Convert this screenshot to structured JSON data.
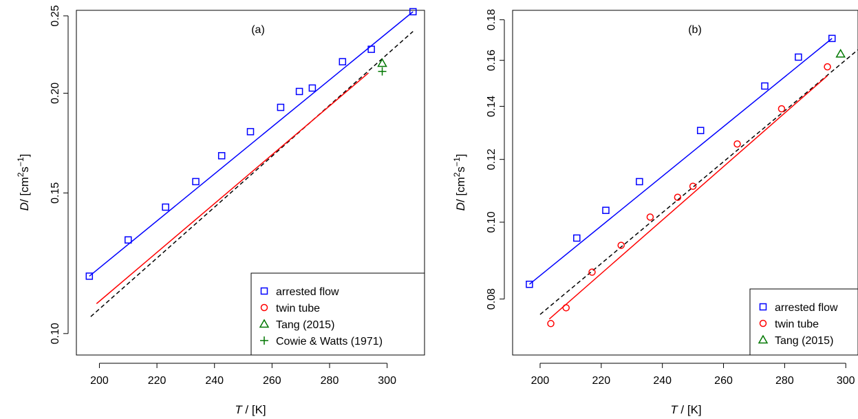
{
  "chart_data": [
    {
      "type": "scatter",
      "title": "(a)",
      "xlabel": "T / [K]",
      "ylabel": "D/ [cm^2 s^-1]",
      "y_scale": "log",
      "xlim": [
        192,
        313
      ],
      "ylim": [
        0.094,
        0.254
      ],
      "x_ticks": [
        200,
        220,
        240,
        260,
        280,
        300
      ],
      "y_ticks": [
        0.1,
        0.15,
        0.2,
        0.25
      ],
      "y_tick_labels": [
        "0.10",
        "0.15",
        "0.20",
        "0.25"
      ],
      "legend_position": "bottom-right",
      "series": [
        {
          "name": "arrested flow",
          "color": "#0000ff",
          "marker": "square",
          "points": [
            [
              196.5,
              0.118
            ],
            [
              210,
              0.131
            ],
            [
              223,
              0.144
            ],
            [
              233.5,
              0.155
            ],
            [
              242.5,
              0.167
            ],
            [
              252.5,
              0.179
            ],
            [
              263,
              0.192
            ],
            [
              269.5,
              0.201
            ],
            [
              274,
              0.203
            ],
            [
              284.5,
              0.219
            ],
            [
              294.5,
              0.227
            ],
            [
              309,
              0.253
            ]
          ],
          "fit_line": [
            [
              196.5,
              0.118
            ],
            [
              309,
              0.253
            ]
          ]
        },
        {
          "name": "twin tube",
          "color": "#ff0000",
          "marker": "circle",
          "points": [],
          "fit_line": [
            [
              199,
              0.109
            ],
            [
              293.5,
              0.212
            ]
          ]
        },
        {
          "name": "Tang (2015)",
          "color": "#007700",
          "marker": "triangle",
          "points": [
            [
              298.3,
              0.218
            ]
          ]
        },
        {
          "name": "Cowie & Watts (1971)",
          "color": "#007700",
          "marker": "plus",
          "points": [
            [
              298.3,
              0.213
            ]
          ]
        }
      ],
      "reference_line": {
        "color": "#000000",
        "style": "dashed",
        "points": [
          [
            197,
            0.105
          ],
          [
            309,
            0.239
          ]
        ]
      }
    },
    {
      "type": "scatter",
      "title": "(b)",
      "xlabel": "T / [K]",
      "ylabel": "D/ [cm^2 s^-1]",
      "y_scale": "log",
      "xlim": [
        191,
        304
      ],
      "ylim": [
        0.068,
        0.185
      ],
      "x_ticks": [
        200,
        220,
        240,
        260,
        280,
        300
      ],
      "y_ticks": [
        0.08,
        0.1,
        0.12,
        0.14,
        0.16,
        0.18
      ],
      "y_tick_labels": [
        "0.08",
        "0.10",
        "0.12",
        "0.14",
        "0.16",
        "0.18"
      ],
      "legend_position": "bottom-right",
      "series": [
        {
          "name": "arrested flow",
          "color": "#0000ff",
          "marker": "square",
          "points": [
            [
              196.5,
              0.0835
            ],
            [
              212,
              0.0955
            ],
            [
              221.5,
              0.1035
            ],
            [
              232.5,
              0.1125
            ],
            [
              252.5,
              0.1305
            ],
            [
              273.5,
              0.1485
            ],
            [
              284.5,
              0.1615
            ],
            [
              295.5,
              0.1705
            ]
          ],
          "fit_line": [
            [
              196.5,
              0.0835
            ],
            [
              295.5,
              0.1705
            ]
          ]
        },
        {
          "name": "twin tube",
          "color": "#ff0000",
          "marker": "circle",
          "points": [
            [
              203.5,
              0.0745
            ],
            [
              208.5,
              0.078
            ],
            [
              217,
              0.0865
            ],
            [
              226.5,
              0.0935
            ],
            [
              236,
              0.1015
            ],
            [
              245,
              0.1075
            ],
            [
              250,
              0.111
            ],
            [
              264.5,
              0.1255
            ],
            [
              279,
              0.139
            ],
            [
              294,
              0.157
            ]
          ],
          "fit_line": [
            [
              203,
              0.0755
            ],
            [
              294,
              0.153
            ]
          ]
        },
        {
          "name": "Tang (2015)",
          "color": "#007700",
          "marker": "triangle",
          "points": [
            [
              298.3,
              0.163
            ]
          ]
        }
      ],
      "reference_line": {
        "color": "#000000",
        "style": "dashed",
        "points": [
          [
            200,
            0.0765
          ],
          [
            304,
            0.165
          ]
        ]
      }
    }
  ]
}
